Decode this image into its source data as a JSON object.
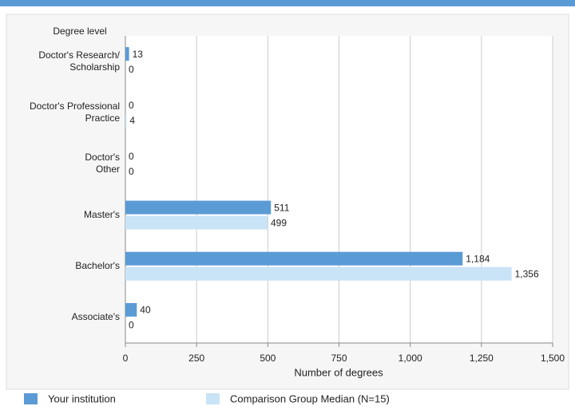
{
  "chart_data": {
    "type": "hbar",
    "y_axis_title": "Degree level",
    "x_axis_title": "Number of degrees",
    "categories": [
      "Doctor's Research/\nScholarship",
      "Doctor's Professional\nPractice",
      "Doctor's\nOther",
      "Master's",
      "Bachelor's",
      "Associate's"
    ],
    "series": [
      {
        "name": "Your institution",
        "color": "#5b9bd5",
        "values": [
          13,
          0,
          0,
          511,
          1184,
          40
        ],
        "value_labels": [
          "13",
          "0",
          "0",
          "511",
          "1,184",
          "40"
        ]
      },
      {
        "name": "Comparison Group Median (N=15)",
        "color": "#c9e3f7",
        "values": [
          0,
          4,
          0,
          499,
          1356,
          0
        ],
        "value_labels": [
          "0",
          "4",
          "0",
          "499",
          "1,356",
          "0"
        ]
      }
    ],
    "xlim": [
      0,
      1500
    ],
    "xticks": [
      0,
      250,
      500,
      750,
      {
        "value": 1000,
        "label": "1,000"
      },
      {
        "value": 1250,
        "label": "1,250"
      },
      {
        "value": 1500,
        "label": "1,500"
      }
    ],
    "grid": true
  }
}
